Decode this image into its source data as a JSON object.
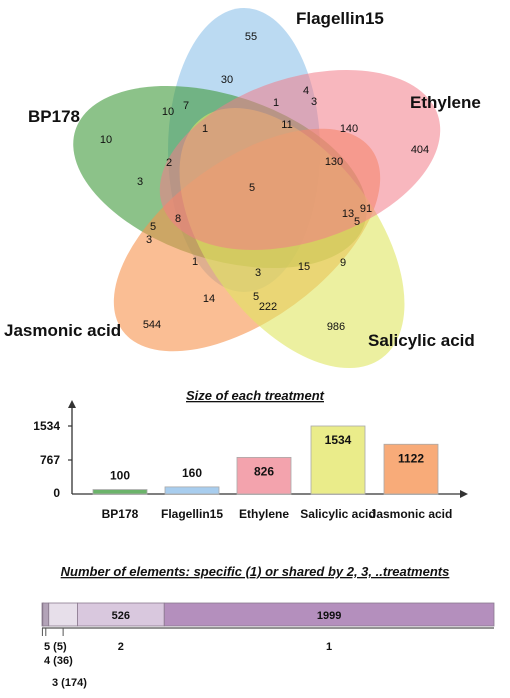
{
  "venn": {
    "sets": [
      {
        "name": "BP178",
        "color": "#3f9a3a"
      },
      {
        "name": "Flagellin15",
        "color": "#8ec1ea"
      },
      {
        "name": "Ethylene",
        "color": "#f27c89"
      },
      {
        "name": "Salicylic acid",
        "color": "#e0e660"
      },
      {
        "name": "Jasmonic acid",
        "color": "#f7924c"
      }
    ],
    "region_values": [
      "55",
      "30",
      "1",
      "4",
      "3",
      "7",
      "10",
      "10",
      "1",
      "11",
      "140",
      "404",
      "2",
      "3",
      "130",
      "5",
      "91",
      "5",
      "13",
      "8",
      "5",
      "3",
      "1",
      "3",
      "15",
      "9",
      "14",
      "5",
      "222",
      "544",
      "986"
    ]
  },
  "bar_chart": {
    "title": "Size of each treatment",
    "y_ticks": [
      "1534",
      "767",
      "0"
    ],
    "chart_data": {
      "type": "bar",
      "categories": [
        "BP178",
        "Flagellin15",
        "Ethylene",
        "Salicylic acid",
        "Jasmonic acid"
      ],
      "values": [
        100,
        160,
        826,
        1534,
        1122
      ],
      "ylim": [
        0,
        1534
      ],
      "colors": [
        "#6bb36a",
        "#a8cdee",
        "#f3a3ad",
        "#eaec8a",
        "#f8ab79"
      ]
    }
  },
  "stacked_bar": {
    "title": "Number of elements: specific (1) or shared by 2, 3, ..treatments",
    "chart_data": {
      "type": "bar",
      "categories": [
        "5",
        "4",
        "3",
        "2",
        "1"
      ],
      "values": [
        5,
        36,
        174,
        526,
        1999
      ],
      "colors": [
        "#7d6f80",
        "#b3a3b8",
        "#e7dfea",
        "#d9c8de",
        "#b48fbd"
      ]
    },
    "segment_labels": [
      "526",
      "1999"
    ],
    "below_labels": [
      "5 (5)",
      "4 (36)",
      "3 (174)",
      "2",
      "1"
    ]
  }
}
